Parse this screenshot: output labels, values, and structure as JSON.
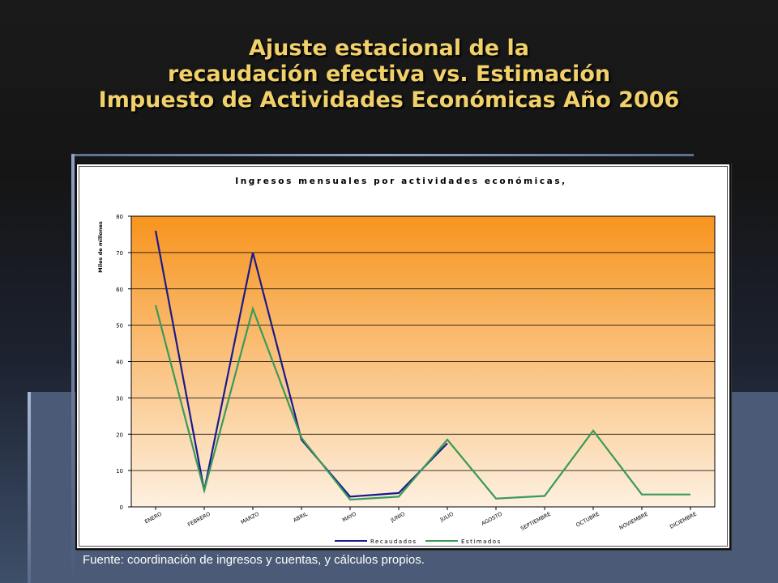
{
  "slide": {
    "title_lines": [
      "Ajuste estacional de la",
      "recaudación efectiva vs. Estimación",
      "Impuesto de Actividades Económicas Año 2006"
    ],
    "source": "Fuente: coordinación de ingresos y cuentas, y cálculos propios."
  },
  "colors": {
    "title": "#f2d16a",
    "plot_top": "#f7941d",
    "plot_bottom": "#fdf0e0",
    "recaudados": "#1a1a8c",
    "estimados": "#3a9a5a"
  },
  "chart_data": {
    "type": "line",
    "title": "Ingresos mensuales por actividades económicas,",
    "ylabel": "Miles de millones",
    "xlabel": "",
    "ylim": [
      0,
      80
    ],
    "yticks": [
      0,
      10,
      20,
      30,
      40,
      50,
      60,
      70,
      80
    ],
    "grid": true,
    "legend_position": "bottom",
    "categories": [
      "ENERO",
      "FEBRERO",
      "MARZO",
      "ABRIL",
      "MAYO",
      "JUNIO",
      "JULIO",
      "AGOSTO",
      "SEPTIEMBRE",
      "OCTUBRE",
      "NOVIEMBRE",
      "DICIEMBRE"
    ],
    "series": [
      {
        "name": "Recaudados",
        "values": [
          76,
          4.5,
          70,
          18.5,
          2.8,
          3.8,
          17.5,
          null,
          null,
          null,
          null,
          null
        ]
      },
      {
        "name": "Estimados",
        "values": [
          55.5,
          4.5,
          54.5,
          19,
          2.0,
          2.8,
          18.5,
          2.3,
          3.0,
          21,
          3.4,
          3.4
        ]
      }
    ]
  }
}
